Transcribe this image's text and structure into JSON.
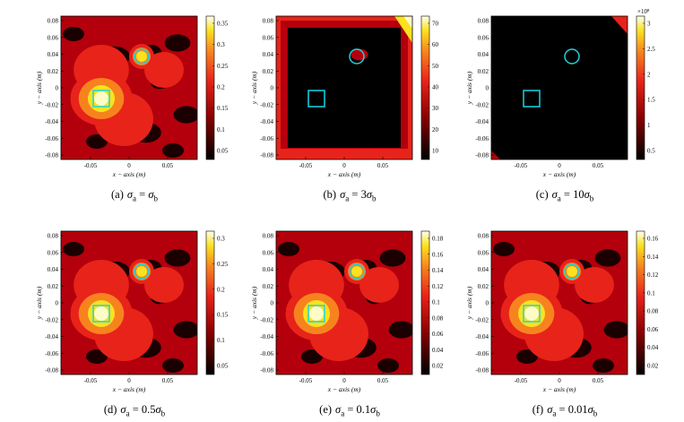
{
  "figure": {
    "axis_labels": {
      "x": "x − axis (m)",
      "y": "y − axis (m)"
    },
    "panels": [
      {
        "id": "a",
        "label": "(a)",
        "sigma_text": "σ",
        "sub_a": "a",
        "eq": " = ",
        "coef": "",
        "sub_b": "b",
        "colorbar": {
          "ticks": [
            "0.35",
            "0.3",
            "0.25",
            "0.2",
            "0.15",
            "0.1",
            "0.05"
          ],
          "exponent": ""
        },
        "image_kind": "normal"
      },
      {
        "id": "b",
        "label": "(b)",
        "sigma_text": "σ",
        "sub_a": "a",
        "eq": " = ",
        "coef": "3",
        "sub_b": "b",
        "colorbar": {
          "ticks": [
            "70",
            "60",
            "50",
            "40",
            "30",
            "20",
            "10"
          ],
          "exponent": ""
        },
        "image_kind": "border"
      },
      {
        "id": "c",
        "label": "(c)",
        "sigma_text": "σ",
        "sub_a": "a",
        "eq": " = ",
        "coef": "10",
        "sub_b": "b",
        "colorbar": {
          "ticks": [
            "3",
            "2.5",
            "2",
            "1.5",
            "1",
            "0.5"
          ],
          "exponent": "×10⁸"
        },
        "image_kind": "dark"
      },
      {
        "id": "d",
        "label": "(d)",
        "sigma_text": "σ",
        "sub_a": "a",
        "eq": " = ",
        "coef": "0.5",
        "sub_b": "b",
        "colorbar": {
          "ticks": [
            "0.3",
            "0.25",
            "0.2",
            "0.15",
            "0.1",
            "0.05"
          ],
          "exponent": ""
        },
        "image_kind": "normal"
      },
      {
        "id": "e",
        "label": "(e)",
        "sigma_text": "σ",
        "sub_a": "a",
        "eq": " = ",
        "coef": "0.1",
        "sub_b": "b",
        "colorbar": {
          "ticks": [
            "0.18",
            "0.16",
            "0.14",
            "0.12",
            "0.1",
            "0.08",
            "0.06",
            "0.04",
            "0.02"
          ],
          "exponent": ""
        },
        "image_kind": "normal"
      },
      {
        "id": "f",
        "label": "(f)",
        "sigma_text": "σ",
        "sub_a": "a",
        "eq": " = ",
        "coef": "0.01",
        "sub_b": "b",
        "colorbar": {
          "ticks": [
            "0.16",
            "0.14",
            "0.12",
            "0.1",
            "0.08",
            "0.06",
            "0.04",
            "0.02"
          ],
          "exponent": ""
        },
        "image_kind": "normal"
      }
    ],
    "x_ticks": [
      "-0.05",
      "0",
      "0.05"
    ],
    "y_ticks": [
      "0.08",
      "0.06",
      "0.04",
      "0.02",
      "0",
      "-0.02",
      "-0.04",
      "-0.06",
      "-0.08"
    ],
    "marker_color": "#19d6e0",
    "colors": {
      "dark": "#1a0000",
      "mid": "#b3000c",
      "red": "#e8231a",
      "orange": "#f7831e",
      "yellow": "#fce21e",
      "pale": "#fffbc6"
    }
  }
}
